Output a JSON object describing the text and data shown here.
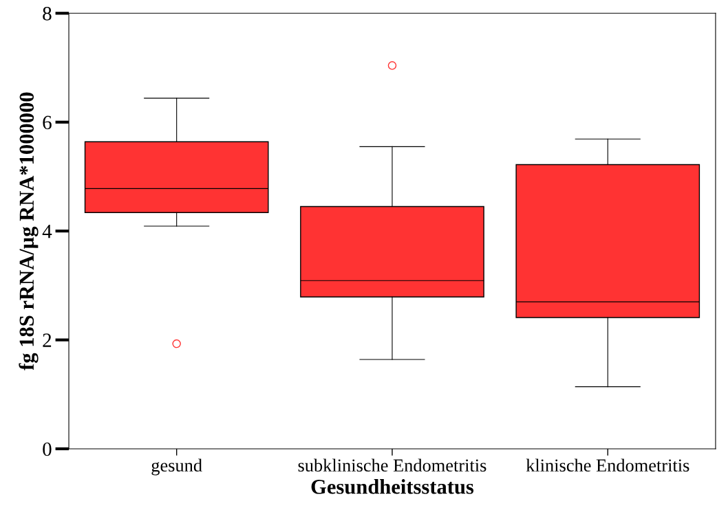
{
  "chart_data": {
    "type": "box",
    "xlabel": "Gesundheitsstatus",
    "ylabel": "fg 18S rRNA/µg RNA*1000000",
    "categories": [
      "gesund",
      "subklinische Endometritis",
      "klinische Endometritis"
    ],
    "color": "#ff3333",
    "boxes": [
      {
        "low": 4.09,
        "q1": 4.34,
        "median": 4.78,
        "q3": 5.64,
        "high": 6.44,
        "outliers": [
          1.93
        ]
      },
      {
        "low": 1.64,
        "q1": 2.79,
        "median": 3.09,
        "q3": 4.45,
        "high": 5.55,
        "outliers": [
          7.04
        ]
      },
      {
        "low": 1.14,
        "q1": 2.41,
        "median": 2.7,
        "q3": 5.22,
        "high": 5.69
      }
    ],
    "ylim": [
      0,
      8
    ],
    "yticks": [
      0,
      2,
      4,
      6,
      8
    ],
    "grid": false
  }
}
